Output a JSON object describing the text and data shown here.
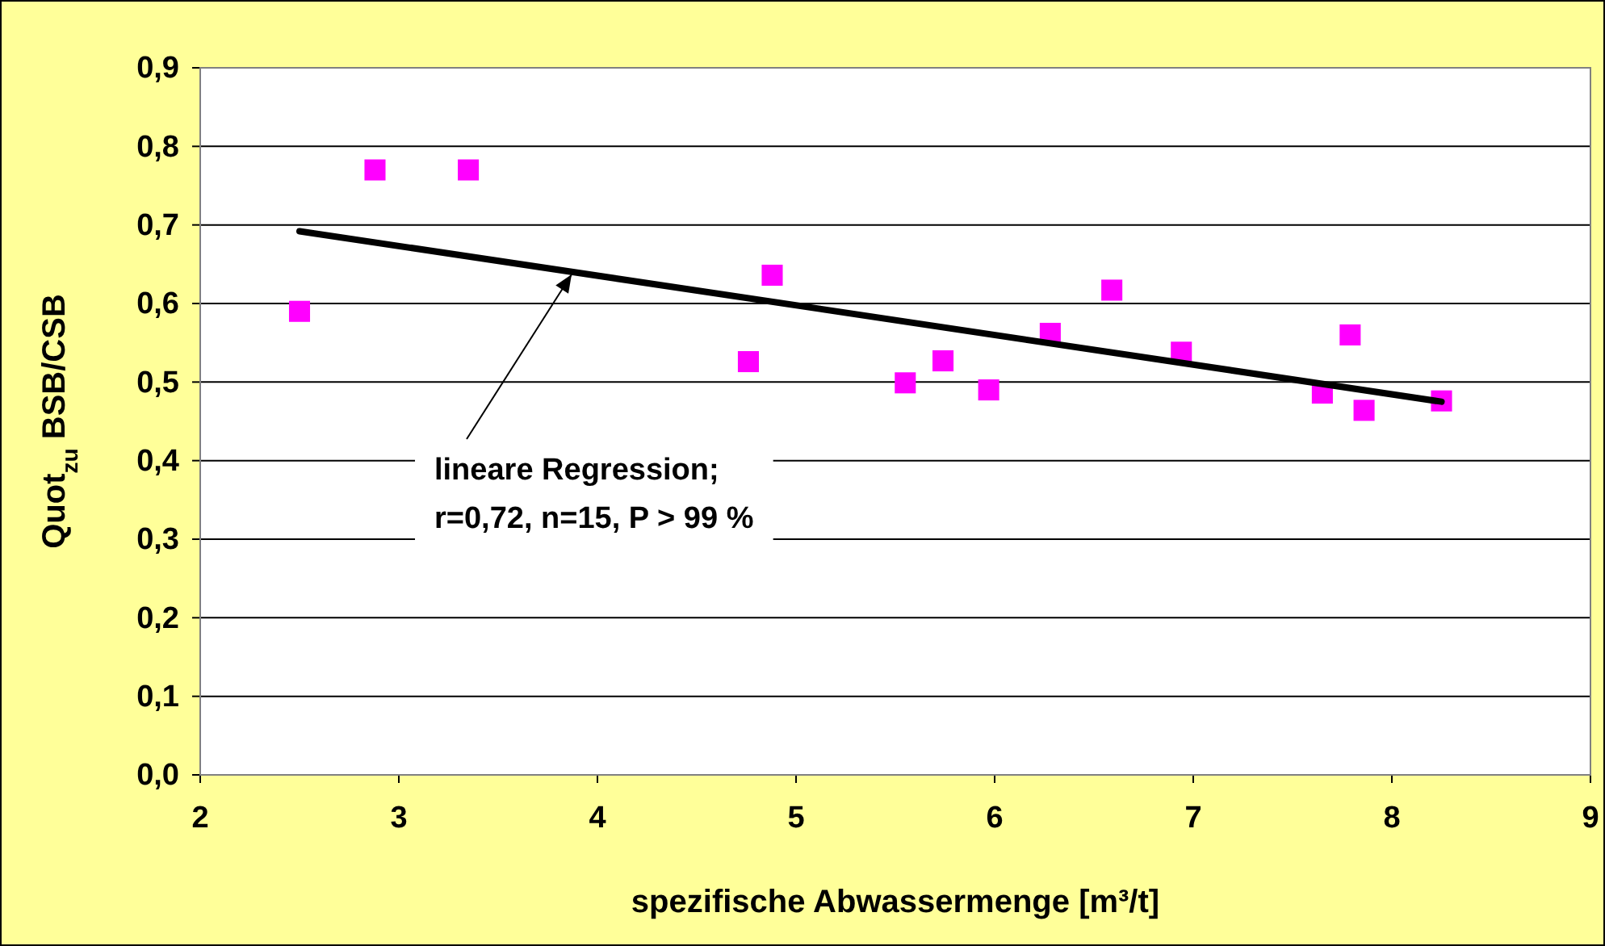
{
  "chart_data": {
    "type": "scatter",
    "xlabel": "spezifische Abwassermenge [m³/t]",
    "ylabel": "Quot$_{zu}$ BSB/CSB",
    "xlim": [
      2,
      9
    ],
    "xticks": [
      2,
      3,
      4,
      5,
      6,
      7,
      8,
      9
    ],
    "ylim": [
      0,
      0.9
    ],
    "yticks": [
      {
        "value": 0,
        "label": "0,0"
      },
      {
        "value": 0.1,
        "label": "0,1"
      },
      {
        "value": 0.2,
        "label": "0,2"
      },
      {
        "value": 0.3,
        "label": "0,3"
      },
      {
        "value": 0.4,
        "label": "0,4"
      },
      {
        "value": 0.5,
        "label": "0,5"
      },
      {
        "value": 0.6,
        "label": "0,6"
      },
      {
        "value": 0.7,
        "label": "0,7"
      },
      {
        "value": 0.8,
        "label": "0,8"
      },
      {
        "value": 0.9,
        "label": "0,9"
      }
    ],
    "grid": "y",
    "series": [
      {
        "marker": "square",
        "color": "#ff00ff",
        "x": [
          2.5,
          2.88,
          3.35,
          4.76,
          4.88,
          5.55,
          5.74,
          5.97,
          6.28,
          6.59,
          6.94,
          7.65,
          7.79,
          7.86,
          8.25
        ],
        "values": [
          0.59,
          0.77,
          0.77,
          0.526,
          0.636,
          0.499,
          0.527,
          0.49,
          0.562,
          0.617,
          0.538,
          0.486,
          0.56,
          0.464,
          0.476
        ]
      },
      {
        "type": "line",
        "color": "#000000",
        "x": [
          2.5,
          8.25
        ],
        "values": [
          0.692,
          0.475
        ]
      }
    ],
    "annotations": [
      {
        "text": "lineare Regression;\nr=0,72, n=15, P > 99 %",
        "x": 3.87,
        "y": 0.637
      }
    ]
  }
}
